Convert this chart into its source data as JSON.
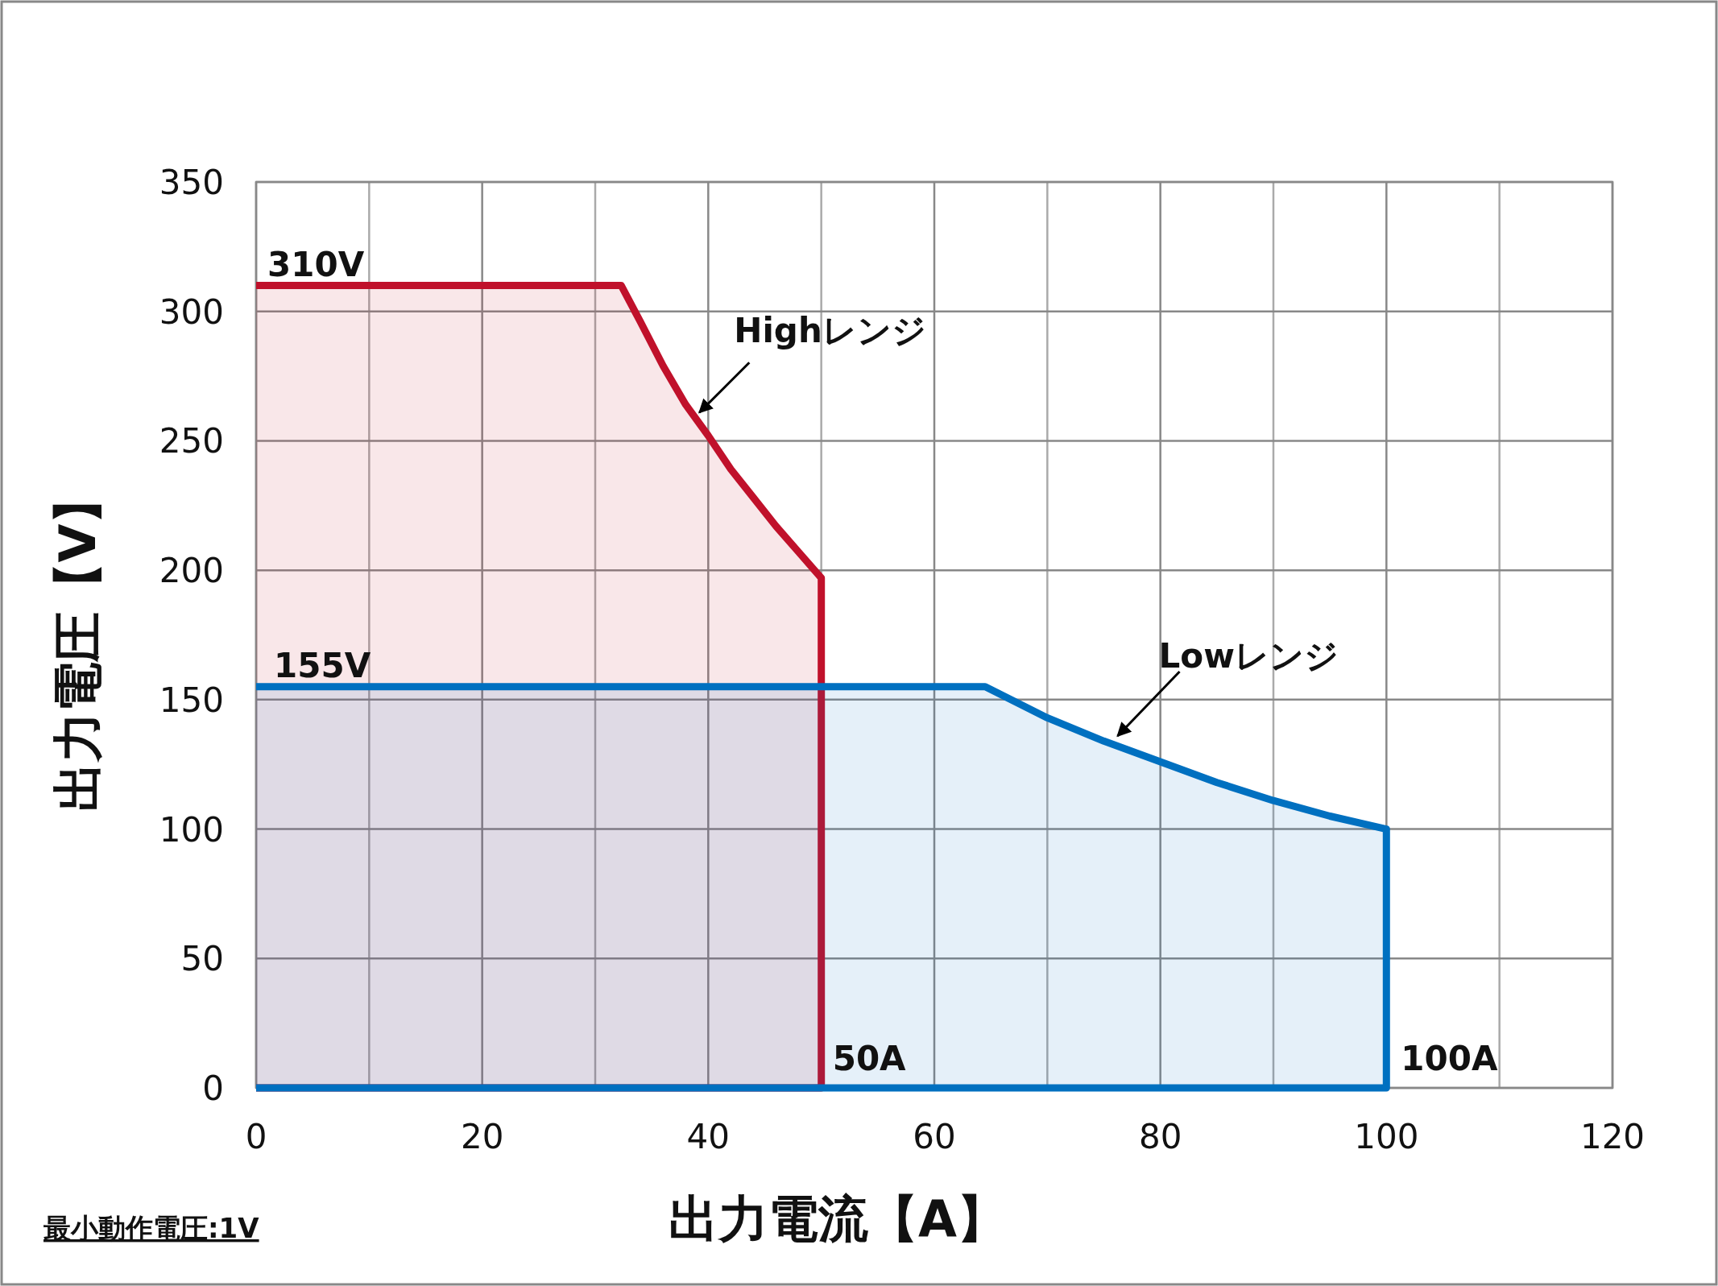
{
  "chart_data": {
    "type": "area",
    "xlabel": "出力電流【A】",
    "ylabel": "出力電圧【V】",
    "xlim": [
      0,
      120
    ],
    "ylim": [
      0,
      350
    ],
    "xticks": [
      0,
      {
        "value": 10,
        "label": null
      },
      20,
      {
        "value": 30,
        "label": null
      },
      40,
      {
        "value": 50,
        "label": null
      },
      60,
      {
        "value": 70,
        "label": null
      },
      80,
      {
        "value": 90,
        "label": null
      },
      100,
      {
        "value": 110,
        "label": null
      },
      120
    ],
    "yticks": [
      0,
      50,
      100,
      150,
      200,
      250,
      300,
      350
    ],
    "grid": true,
    "series": [
      {
        "color": "#c0112b",
        "x": [
          0,
          32.3,
          34,
          36,
          38,
          40,
          42,
          44,
          46,
          48,
          50,
          50,
          0
        ],
        "values": [
          310,
          310,
          296,
          279,
          264,
          252,
          239,
          228,
          217,
          207,
          197,
          0,
          0
        ]
      },
      {
        "color": "#0070c0",
        "x": [
          0,
          64.5,
          70,
          75,
          80,
          85,
          90,
          95,
          100,
          100,
          0
        ],
        "values": [
          155,
          155,
          143,
          134,
          126,
          118,
          111,
          105,
          100,
          0,
          0
        ]
      }
    ],
    "annotations": [
      {
        "text": "310V",
        "x": 0,
        "y": 310
      },
      {
        "text": "155V",
        "x": 0,
        "y": 155
      },
      {
        "text": "50A",
        "x": 50,
        "y": 0
      },
      {
        "text": "100A",
        "x": 100,
        "y": 0
      },
      {
        "text": "Highレンジ",
        "x": 39,
        "y": 260
      },
      {
        "text": "Lowレンジ",
        "x": 76,
        "y": 135
      },
      "最小動作電圧:1V"
    ]
  }
}
